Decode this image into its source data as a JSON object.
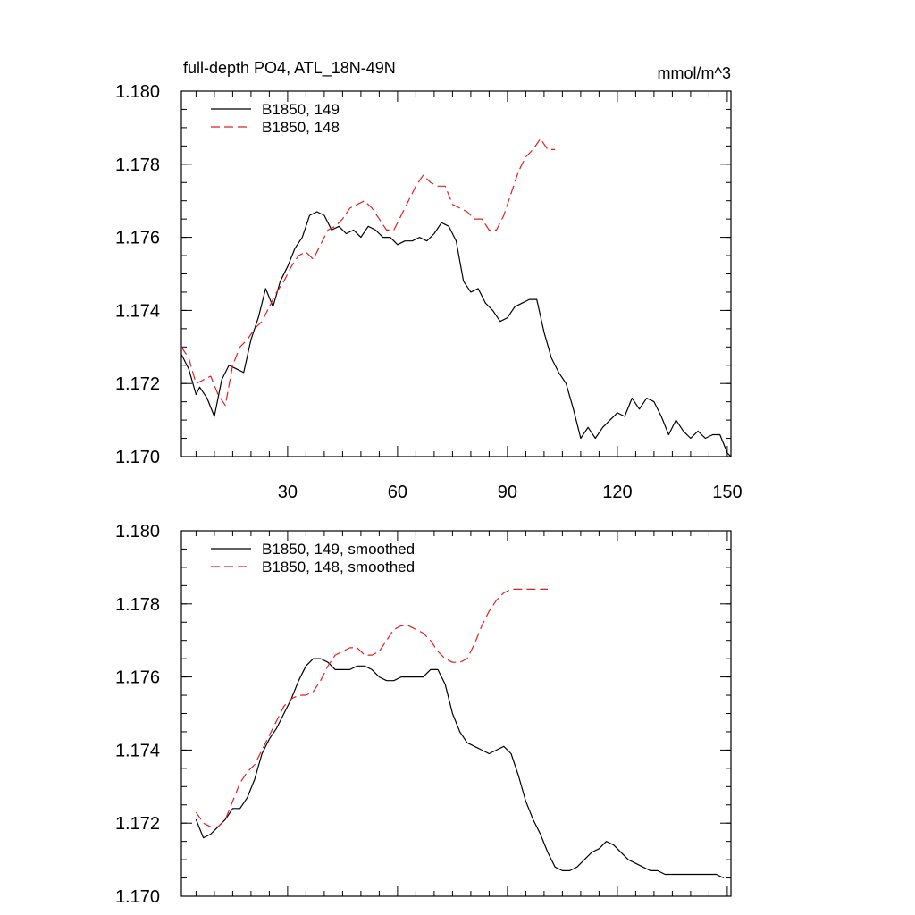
{
  "chart_data": [
    {
      "type": "line",
      "title_left": "full-depth PO4, ATL_18N-49N",
      "title_right": "mmol/m^3",
      "xlabel": "",
      "ylabel": "",
      "xlim": [
        1,
        151
      ],
      "ylim": [
        1.17,
        1.18
      ],
      "xticks": [
        30,
        60,
        90,
        120,
        150
      ],
      "xtick_labels": [
        "30",
        "60",
        "90",
        "120",
        "150"
      ],
      "yticks": [
        1.17,
        1.172,
        1.174,
        1.176,
        1.178,
        1.18
      ],
      "ytick_labels": [
        "1.170",
        "1.172",
        "1.174",
        "1.176",
        "1.178",
        "1.180"
      ],
      "legend_position": "top-left",
      "series": [
        {
          "name": "B1850, 149",
          "color": "#000000",
          "dash": "solid",
          "x": [
            1,
            3,
            5,
            6,
            8,
            10,
            12,
            14,
            16,
            18,
            20,
            22,
            24,
            26,
            28,
            30,
            32,
            34,
            36,
            38,
            40,
            42,
            44,
            46,
            48,
            50,
            52,
            54,
            56,
            58,
            60,
            62,
            64,
            66,
            68,
            70,
            72,
            74,
            76,
            78,
            80,
            82,
            84,
            86,
            88,
            90,
            92,
            94,
            96,
            98,
            100,
            102,
            104,
            106,
            108,
            110,
            112,
            114,
            116,
            118,
            120,
            122,
            124,
            126,
            128,
            130,
            132,
            134,
            136,
            138,
            140,
            142,
            144,
            146,
            148,
            150,
            151
          ],
          "y": [
            1.1728,
            1.1724,
            1.1717,
            1.1719,
            1.1716,
            1.1711,
            1.1721,
            1.1725,
            1.1724,
            1.1723,
            1.1732,
            1.1738,
            1.1746,
            1.1741,
            1.1748,
            1.1752,
            1.1757,
            1.176,
            1.1766,
            1.1767,
            1.1766,
            1.1762,
            1.1763,
            1.1761,
            1.1762,
            1.176,
            1.1763,
            1.1762,
            1.176,
            1.176,
            1.1758,
            1.1759,
            1.1759,
            1.176,
            1.1759,
            1.1761,
            1.1764,
            1.1763,
            1.1759,
            1.1748,
            1.1745,
            1.1746,
            1.1742,
            1.174,
            1.1737,
            1.1738,
            1.1741,
            1.1742,
            1.1743,
            1.1743,
            1.1734,
            1.1727,
            1.1723,
            1.172,
            1.1713,
            1.1705,
            1.1708,
            1.1705,
            1.1708,
            1.171,
            1.1712,
            1.1711,
            1.1716,
            1.1713,
            1.1716,
            1.1715,
            1.1711,
            1.1706,
            1.171,
            1.1707,
            1.1705,
            1.1707,
            1.1705,
            1.1706,
            1.1706,
            1.1701,
            1.17
          ]
        },
        {
          "name": "B1850, 148",
          "color": "#e02020",
          "dash": "dashed",
          "x": [
            1,
            3,
            5,
            7,
            9,
            11,
            13,
            15,
            17,
            19,
            21,
            23,
            25,
            27,
            29,
            31,
            33,
            35,
            37,
            39,
            41,
            43,
            45,
            47,
            49,
            51,
            53,
            55,
            57,
            59,
            61,
            63,
            65,
            67,
            69,
            71,
            73,
            75,
            77,
            79,
            81,
            83,
            85,
            87,
            89,
            91,
            93,
            95,
            97,
            99,
            101,
            103
          ],
          "y": [
            1.173,
            1.1727,
            1.172,
            1.1721,
            1.1722,
            1.1717,
            1.1714,
            1.1725,
            1.173,
            1.1732,
            1.1735,
            1.1737,
            1.1741,
            1.1745,
            1.1748,
            1.1752,
            1.1755,
            1.1756,
            1.1754,
            1.1758,
            1.1762,
            1.1763,
            1.1765,
            1.1768,
            1.1769,
            1.177,
            1.1768,
            1.1765,
            1.1762,
            1.1762,
            1.1766,
            1.177,
            1.1774,
            1.1777,
            1.1775,
            1.1774,
            1.1774,
            1.1769,
            1.1768,
            1.1767,
            1.1765,
            1.1765,
            1.1762,
            1.1762,
            1.1766,
            1.1772,
            1.1778,
            1.1782,
            1.1784,
            1.1787,
            1.1784,
            1.1784
          ]
        }
      ]
    },
    {
      "type": "line",
      "title_left": "",
      "title_right": "",
      "xlabel": "",
      "ylabel": "",
      "xlim": [
        1,
        151
      ],
      "ylim": [
        1.17,
        1.18
      ],
      "xticks": [
        30,
        60,
        90,
        120,
        150
      ],
      "xtick_labels": [],
      "yticks": [
        1.17,
        1.172,
        1.174,
        1.176,
        1.178,
        1.18
      ],
      "ytick_labels": [
        "1.170",
        "1.172",
        "1.174",
        "1.176",
        "1.178",
        "1.180"
      ],
      "legend_position": "top-left",
      "series": [
        {
          "name": "B1850, 149, smoothed",
          "color": "#000000",
          "dash": "solid",
          "x": [
            5,
            7,
            9,
            11,
            13,
            15,
            17,
            19,
            21,
            23,
            25,
            27,
            29,
            31,
            33,
            35,
            37,
            39,
            41,
            43,
            45,
            47,
            49,
            51,
            53,
            55,
            57,
            59,
            61,
            63,
            65,
            67,
            69,
            71,
            73,
            75,
            77,
            79,
            81,
            83,
            85,
            87,
            89,
            91,
            93,
            95,
            97,
            99,
            101,
            103,
            105,
            107,
            109,
            111,
            113,
            115,
            117,
            119,
            121,
            123,
            125,
            127,
            129,
            131,
            133,
            135,
            137,
            139,
            141,
            143,
            145,
            147,
            149
          ],
          "y": [
            1.1721,
            1.1716,
            1.1717,
            1.1719,
            1.1721,
            1.1724,
            1.1724,
            1.1727,
            1.1732,
            1.1739,
            1.1743,
            1.1746,
            1.175,
            1.1754,
            1.1759,
            1.1763,
            1.1765,
            1.1765,
            1.1764,
            1.1762,
            1.1762,
            1.1762,
            1.1763,
            1.1763,
            1.1762,
            1.176,
            1.1759,
            1.1759,
            1.176,
            1.176,
            1.176,
            1.176,
            1.1762,
            1.1762,
            1.1758,
            1.175,
            1.1745,
            1.1742,
            1.1741,
            1.174,
            1.1739,
            1.174,
            1.1741,
            1.1739,
            1.1733,
            1.1726,
            1.1721,
            1.1717,
            1.1712,
            1.1708,
            1.1707,
            1.1707,
            1.1708,
            1.171,
            1.1712,
            1.1713,
            1.1715,
            1.1714,
            1.1712,
            1.171,
            1.1709,
            1.1708,
            1.1707,
            1.1707,
            1.1706,
            1.1706,
            1.1706,
            1.1706,
            1.1706,
            1.1706,
            1.1706,
            1.1706,
            1.1705
          ]
        },
        {
          "name": "B1850, 148, smoothed",
          "color": "#e02020",
          "dash": "dashed",
          "x": [
            5,
            7,
            9,
            11,
            13,
            15,
            17,
            19,
            21,
            23,
            25,
            27,
            29,
            31,
            33,
            35,
            37,
            39,
            41,
            43,
            45,
            47,
            49,
            51,
            53,
            55,
            57,
            59,
            61,
            63,
            65,
            67,
            69,
            71,
            73,
            75,
            77,
            79,
            81,
            83,
            85,
            87,
            89,
            91,
            93,
            95,
            97,
            99,
            101
          ],
          "y": [
            1.1723,
            1.172,
            1.1719,
            1.1719,
            1.1721,
            1.1726,
            1.1731,
            1.1734,
            1.1736,
            1.174,
            1.1744,
            1.1748,
            1.1752,
            1.1754,
            1.1755,
            1.1755,
            1.1756,
            1.1759,
            1.1763,
            1.1766,
            1.1767,
            1.1768,
            1.1768,
            1.1766,
            1.1766,
            1.1767,
            1.177,
            1.1773,
            1.1774,
            1.1774,
            1.1773,
            1.1772,
            1.177,
            1.1767,
            1.1765,
            1.1764,
            1.1764,
            1.1765,
            1.1769,
            1.1774,
            1.1778,
            1.1781,
            1.1783,
            1.1784,
            1.1784,
            1.1784,
            1.1784,
            1.1784,
            1.1784
          ]
        }
      ]
    }
  ]
}
